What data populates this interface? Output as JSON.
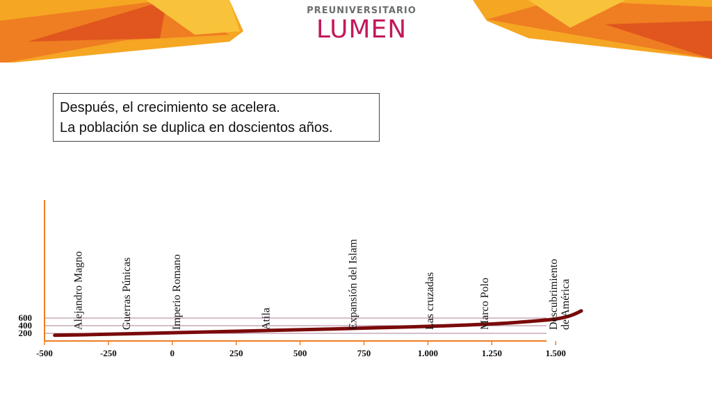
{
  "brand": {
    "top": "PREUNIVERSITARIO",
    "main": "LUMEN",
    "colors": {
      "orange": "#ef7d22",
      "amber": "#f5a623",
      "yellow": "#f8c33a",
      "deep_orange": "#e0561e",
      "magenta": "#c2185b"
    }
  },
  "note": {
    "line1": "Después, el crecimiento se acelera.",
    "line2": "La población se duplica en doscientos años."
  },
  "chart_data": {
    "type": "line",
    "title": "",
    "xlabel": "",
    "ylabel": "",
    "xlim": [
      -500,
      1600
    ],
    "ylim": [
      0,
      3800
    ],
    "x_tick_labels": [
      "-500",
      "-250",
      "0",
      "250",
      "500",
      "750",
      "1.000",
      "1.250",
      "1.500"
    ],
    "x_ticks": [
      -500,
      -250,
      0,
      250,
      500,
      750,
      1000,
      1250,
      1500
    ],
    "y_tick_labels": [
      "200",
      "400",
      "600"
    ],
    "y_ticks": [
      200,
      400,
      600
    ],
    "grid": "horizontal lines at y ticks",
    "series": [
      {
        "color": "#7a0a0a",
        "points": [
          [
            -460,
            150
          ],
          [
            -250,
            175
          ],
          [
            0,
            215
          ],
          [
            250,
            255
          ],
          [
            500,
            295
          ],
          [
            750,
            335
          ],
          [
            1000,
            380
          ],
          [
            1250,
            440
          ],
          [
            1400,
            510
          ],
          [
            1500,
            570
          ],
          [
            1550,
            640
          ],
          [
            1580,
            720
          ],
          [
            1600,
            790
          ]
        ]
      }
    ],
    "annotations": [
      {
        "x": -355,
        "text": [
          "Alejandro Magno"
        ]
      },
      {
        "x": -165,
        "text": [
          "Guerras Púnicas"
        ]
      },
      {
        "x": 30,
        "text": [
          "Imperio Romano"
        ]
      },
      {
        "x": 380,
        "text": [
          "Atila"
        ]
      },
      {
        "x": 720,
        "text": [
          "Expansión del Islam"
        ]
      },
      {
        "x": 1020,
        "text": [
          "Las cruzadas"
        ]
      },
      {
        "x": 1235,
        "text": [
          "Marco Polo"
        ]
      },
      {
        "x": 1505,
        "text": [
          "Descubrimiento",
          "de América"
        ]
      }
    ]
  }
}
